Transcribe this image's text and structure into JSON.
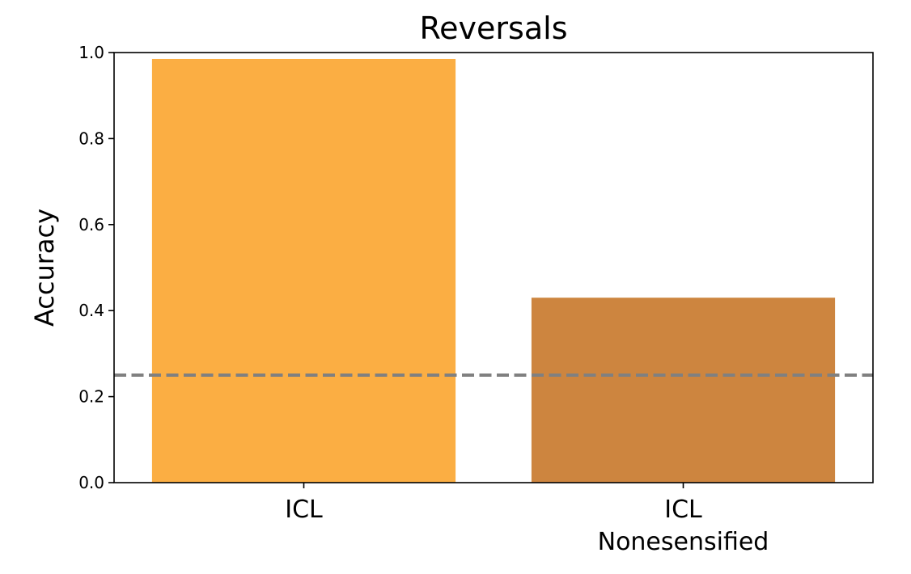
{
  "chart_data": {
    "type": "bar",
    "title": "Reversals",
    "xlabel": "",
    "ylabel": "Accuracy",
    "ylim": [
      0.0,
      1.0
    ],
    "yticks": [
      "0.0",
      "0.2",
      "0.4",
      "0.6",
      "0.8",
      "1.0"
    ],
    "grid": false,
    "categories": [
      [
        "ICL"
      ],
      [
        "ICL",
        "Nonesensified"
      ]
    ],
    "values": [
      0.985,
      0.43
    ],
    "colors": [
      "#fbae43",
      "#cd853f"
    ],
    "reference_line": {
      "y": 0.25,
      "style": "dashed",
      "color": "#808080"
    }
  }
}
